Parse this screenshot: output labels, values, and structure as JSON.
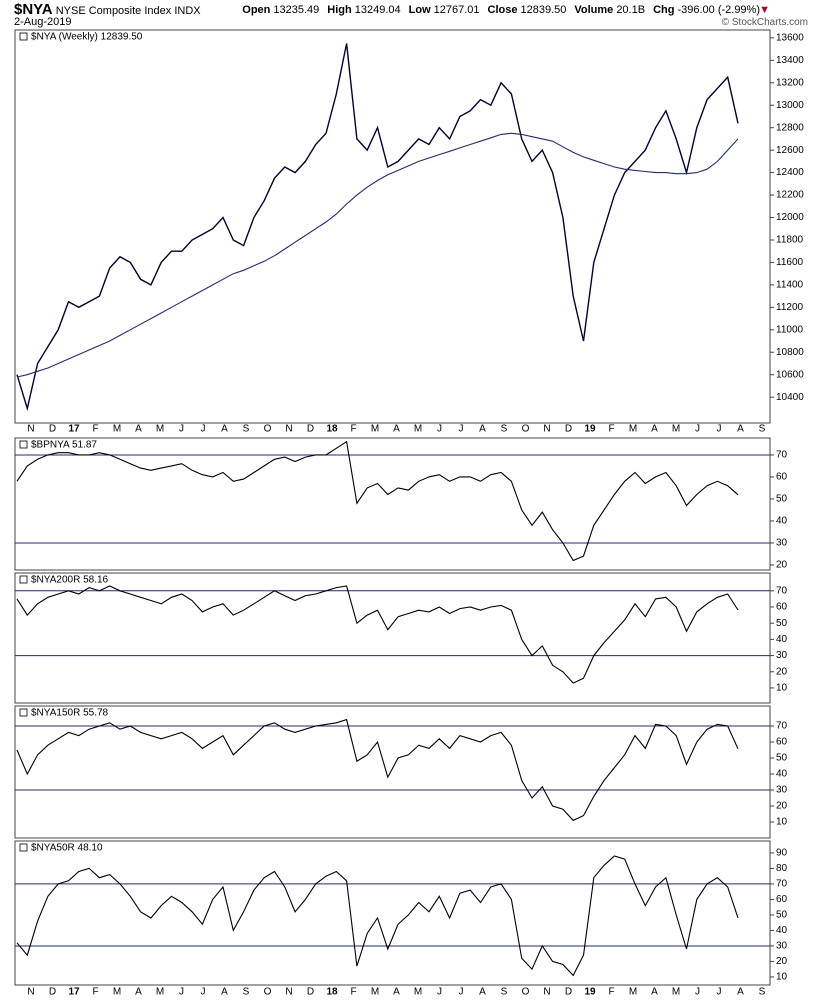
{
  "header": {
    "symbol": "$NYA",
    "name": "NYSE Composite Index",
    "exchange": "INDX",
    "date": "2-Aug-2019",
    "quote": [
      {
        "label": "Open",
        "value": "13235.49"
      },
      {
        "label": "High",
        "value": "13249.04"
      },
      {
        "label": "Low",
        "value": "12767.01"
      },
      {
        "label": "Close",
        "value": "12839.50"
      },
      {
        "label": "Volume",
        "value": "20.1B"
      },
      {
        "label": "Chg",
        "value": "-396.00 (-2.99%)"
      }
    ],
    "credit": "© StockCharts.com"
  },
  "chart_data": [
    {
      "type": "line",
      "title": "$NYA (Weekly) 12839.50",
      "x_labels": [
        "N",
        "D",
        "17",
        "F",
        "M",
        "A",
        "M",
        "J",
        "J",
        "A",
        "S",
        "O",
        "N",
        "D",
        "18",
        "F",
        "M",
        "A",
        "M",
        "J",
        "J",
        "A",
        "S",
        "O",
        "N",
        "D",
        "19",
        "F",
        "M",
        "A",
        "M",
        "J",
        "J",
        "A",
        "S"
      ],
      "ylim": [
        10170,
        13670
      ],
      "yticks": [
        10400,
        10600,
        10800,
        11000,
        11200,
        11400,
        11600,
        11800,
        12000,
        12200,
        12400,
        12600,
        12800,
        13000,
        13200,
        13400,
        13600
      ],
      "series": [
        {
          "color": "#000033",
          "values": [
            10600,
            10300,
            10700,
            10850,
            11000,
            11250,
            11200,
            11250,
            11300,
            11550,
            11650,
            11600,
            11450,
            11400,
            11600,
            11700,
            11700,
            11800,
            11850,
            11900,
            12000,
            11800,
            11750,
            12000,
            12150,
            12350,
            12450,
            12400,
            12500,
            12650,
            12750,
            13100,
            13550,
            12700,
            12600,
            12800,
            12450,
            12500,
            12600,
            12700,
            12650,
            12800,
            12700,
            12900,
            12950,
            13050,
            13000,
            13200,
            13100,
            12700,
            12500,
            12600,
            12400,
            12000,
            11300,
            10900,
            11600,
            11900,
            12200,
            12400,
            12500,
            12600,
            12800,
            12950,
            12700,
            12400,
            12800,
            13050,
            13150,
            13250,
            12839.5
          ]
        },
        {
          "color": "#1f2a80",
          "values": [
            10580,
            10600,
            10630,
            10660,
            10700,
            10740,
            10780,
            10820,
            10860,
            10900,
            10950,
            11000,
            11050,
            11100,
            11150,
            11200,
            11250,
            11300,
            11350,
            11400,
            11450,
            11500,
            11530,
            11570,
            11610,
            11660,
            11720,
            11780,
            11840,
            11900,
            11960,
            12030,
            12120,
            12200,
            12270,
            12330,
            12380,
            12420,
            12460,
            12500,
            12530,
            12560,
            12590,
            12620,
            12650,
            12680,
            12710,
            12740,
            12750,
            12740,
            12720,
            12700,
            12680,
            12630,
            12580,
            12540,
            12510,
            12480,
            12450,
            12430,
            12420,
            12410,
            12400,
            12400,
            12390,
            12390,
            12400,
            12430,
            12500,
            12600,
            12700
          ]
        }
      ]
    },
    {
      "type": "line",
      "title": "$BPNYA 51.87",
      "ylim": [
        17.7,
        77.7
      ],
      "yticks": [
        20,
        30,
        40,
        50,
        60,
        70
      ],
      "hlines": [
        30,
        70
      ],
      "series": [
        {
          "color": "#000000",
          "values": [
            58,
            65,
            68,
            70,
            71,
            71,
            70,
            70,
            71,
            70,
            68,
            66,
            64,
            63,
            64,
            65,
            66,
            63,
            61,
            60,
            62,
            58,
            59,
            62,
            65,
            68,
            69,
            67,
            69,
            70,
            70,
            73,
            76,
            48,
            55,
            57,
            52,
            55,
            54,
            58,
            60,
            61,
            58,
            60,
            60,
            58,
            61,
            62,
            58,
            45,
            38,
            44,
            36,
            30,
            22,
            24,
            38,
            45,
            52,
            58,
            62,
            57,
            60,
            62,
            56,
            47,
            52,
            56,
            58,
            56,
            51.87
          ]
        }
      ]
    },
    {
      "type": "line",
      "title": "$NYA200R 58.16",
      "ylim": [
        0.7,
        81
      ],
      "yticks": [
        10,
        20,
        30,
        40,
        50,
        60,
        70
      ],
      "hlines": [
        30,
        70
      ],
      "series": [
        {
          "color": "#000000",
          "values": [
            65,
            55,
            62,
            66,
            68,
            70,
            68,
            72,
            70,
            73,
            70,
            68,
            66,
            64,
            62,
            66,
            68,
            64,
            57,
            60,
            62,
            55,
            58,
            62,
            66,
            70,
            67,
            64,
            67,
            68,
            70,
            72,
            73,
            50,
            55,
            58,
            46,
            54,
            56,
            58,
            57,
            60,
            56,
            59,
            60,
            58,
            60,
            61,
            58,
            40,
            30,
            36,
            24,
            20,
            13,
            16,
            30,
            38,
            45,
            52,
            62,
            54,
            65,
            66,
            60,
            45,
            57,
            62,
            66,
            68,
            58.16
          ]
        }
      ]
    },
    {
      "type": "line",
      "title": "$NYA150R 55.78",
      "ylim": [
        0,
        82.5
      ],
      "yticks": [
        10,
        20,
        30,
        40,
        50,
        60,
        70
      ],
      "hlines": [
        30,
        70
      ],
      "series": [
        {
          "color": "#000000",
          "values": [
            55,
            40,
            52,
            58,
            62,
            66,
            64,
            68,
            70,
            72,
            68,
            70,
            66,
            64,
            62,
            64,
            66,
            62,
            56,
            60,
            64,
            52,
            58,
            64,
            70,
            72,
            68,
            66,
            68,
            70,
            71,
            72,
            74,
            48,
            52,
            60,
            38,
            50,
            52,
            58,
            56,
            62,
            56,
            64,
            62,
            60,
            64,
            66,
            58,
            36,
            25,
            32,
            20,
            18,
            11,
            14,
            26,
            36,
            44,
            52,
            64,
            56,
            71,
            70,
            64,
            46,
            60,
            68,
            71,
            70,
            55.78
          ]
        }
      ]
    },
    {
      "type": "line",
      "title": "$NYA50R 48.10",
      "ylim": [
        4.8,
        97.7
      ],
      "yticks": [
        10,
        20,
        30,
        40,
        50,
        60,
        70,
        80,
        90
      ],
      "hlines": [
        30,
        70
      ],
      "series": [
        {
          "color": "#000000",
          "values": [
            32,
            24,
            46,
            62,
            70,
            72,
            78,
            80,
            74,
            76,
            70,
            62,
            52,
            48,
            56,
            62,
            58,
            52,
            44,
            60,
            68,
            40,
            52,
            66,
            74,
            78,
            68,
            52,
            60,
            70,
            75,
            78,
            72,
            17,
            38,
            48,
            28,
            44,
            50,
            58,
            52,
            62,
            48,
            64,
            66,
            58,
            68,
            70,
            60,
            22,
            15,
            30,
            20,
            18,
            11,
            24,
            74,
            82,
            88,
            86,
            70,
            56,
            68,
            74,
            50,
            28,
            60,
            70,
            74,
            68,
            48.1
          ]
        }
      ]
    }
  ]
}
